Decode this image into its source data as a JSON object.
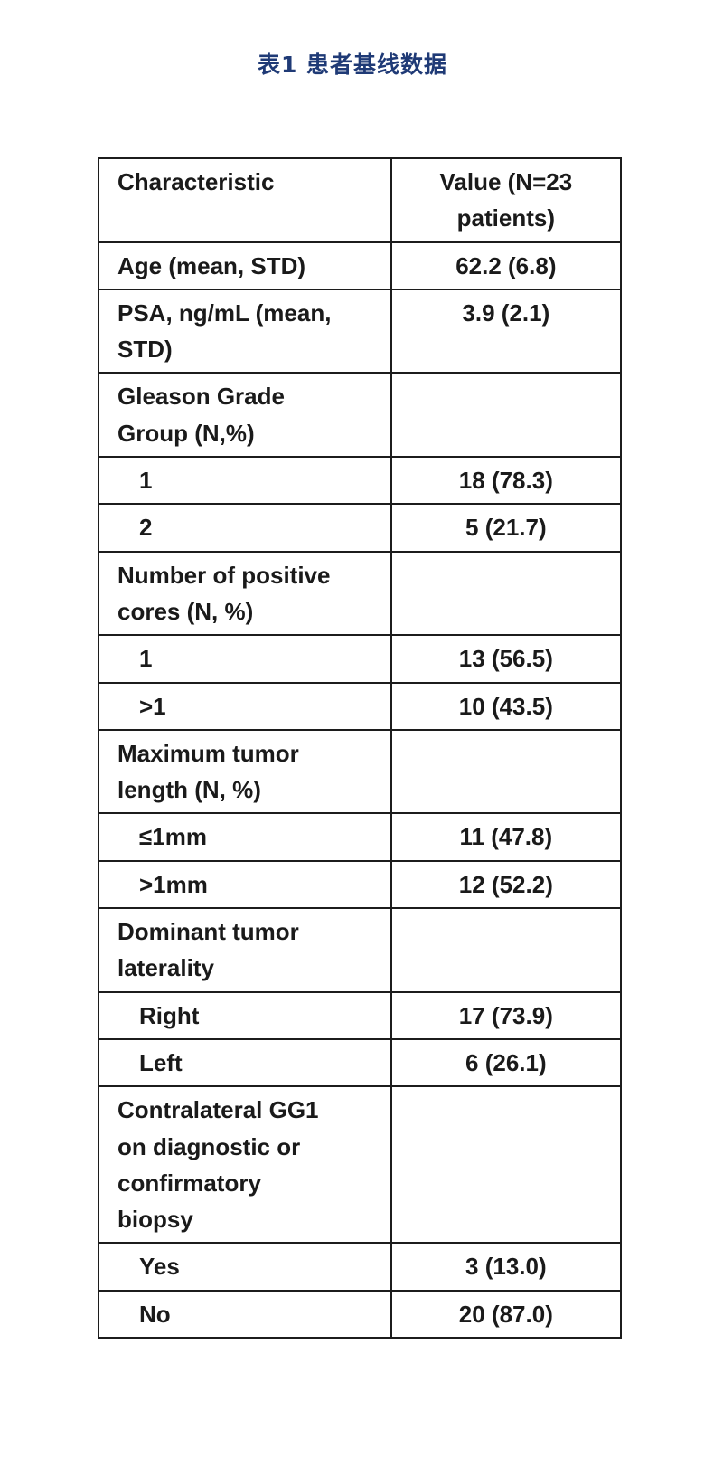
{
  "title": "表1  患者基线数据",
  "colors": {
    "title": "#1F3A76",
    "table_text": "#1a1a1a",
    "table_border": "#1c1c1c",
    "background": "#ffffff"
  },
  "table": {
    "columns": [
      "Characteristic",
      "Value (N=23 patients)"
    ],
    "rows": [
      {
        "label": "Age (mean, STD)",
        "value": "62.2 (6.8)",
        "indent": false
      },
      {
        "label": "PSA, ng/mL (mean, STD)",
        "value": "3.9 (2.1)",
        "indent": false
      },
      {
        "label": "Gleason Grade Group (N,%)",
        "value": "",
        "indent": false
      },
      {
        "label": "1",
        "value": "18 (78.3)",
        "indent": true
      },
      {
        "label": "2",
        "value": "5 (21.7)",
        "indent": true
      },
      {
        "label": "Number of positive cores (N, %)",
        "value": "",
        "indent": false
      },
      {
        "label": "1",
        "value": "13 (56.5)",
        "indent": true
      },
      {
        "label": ">1",
        "value": "10 (43.5)",
        "indent": true
      },
      {
        "label": "Maximum tumor length (N, %)",
        "value": "",
        "indent": false
      },
      {
        "label": "≤1mm",
        "value": "11 (47.8)",
        "indent": true
      },
      {
        "label": ">1mm",
        "value": "12 (52.2)",
        "indent": true
      },
      {
        "label": "Dominant tumor laterality",
        "value": "",
        "indent": false
      },
      {
        "label": "Right",
        "value": "17 (73.9)",
        "indent": true
      },
      {
        "label": "Left",
        "value": "6 (26.1)",
        "indent": true
      },
      {
        "label": "Contralateral GG1 on diagnostic or confirmatory biopsy",
        "value": "",
        "indent": false
      },
      {
        "label": "Yes",
        "value": "3 (13.0)",
        "indent": true
      },
      {
        "label": "No",
        "value": "20 (87.0)",
        "indent": true
      }
    ]
  }
}
